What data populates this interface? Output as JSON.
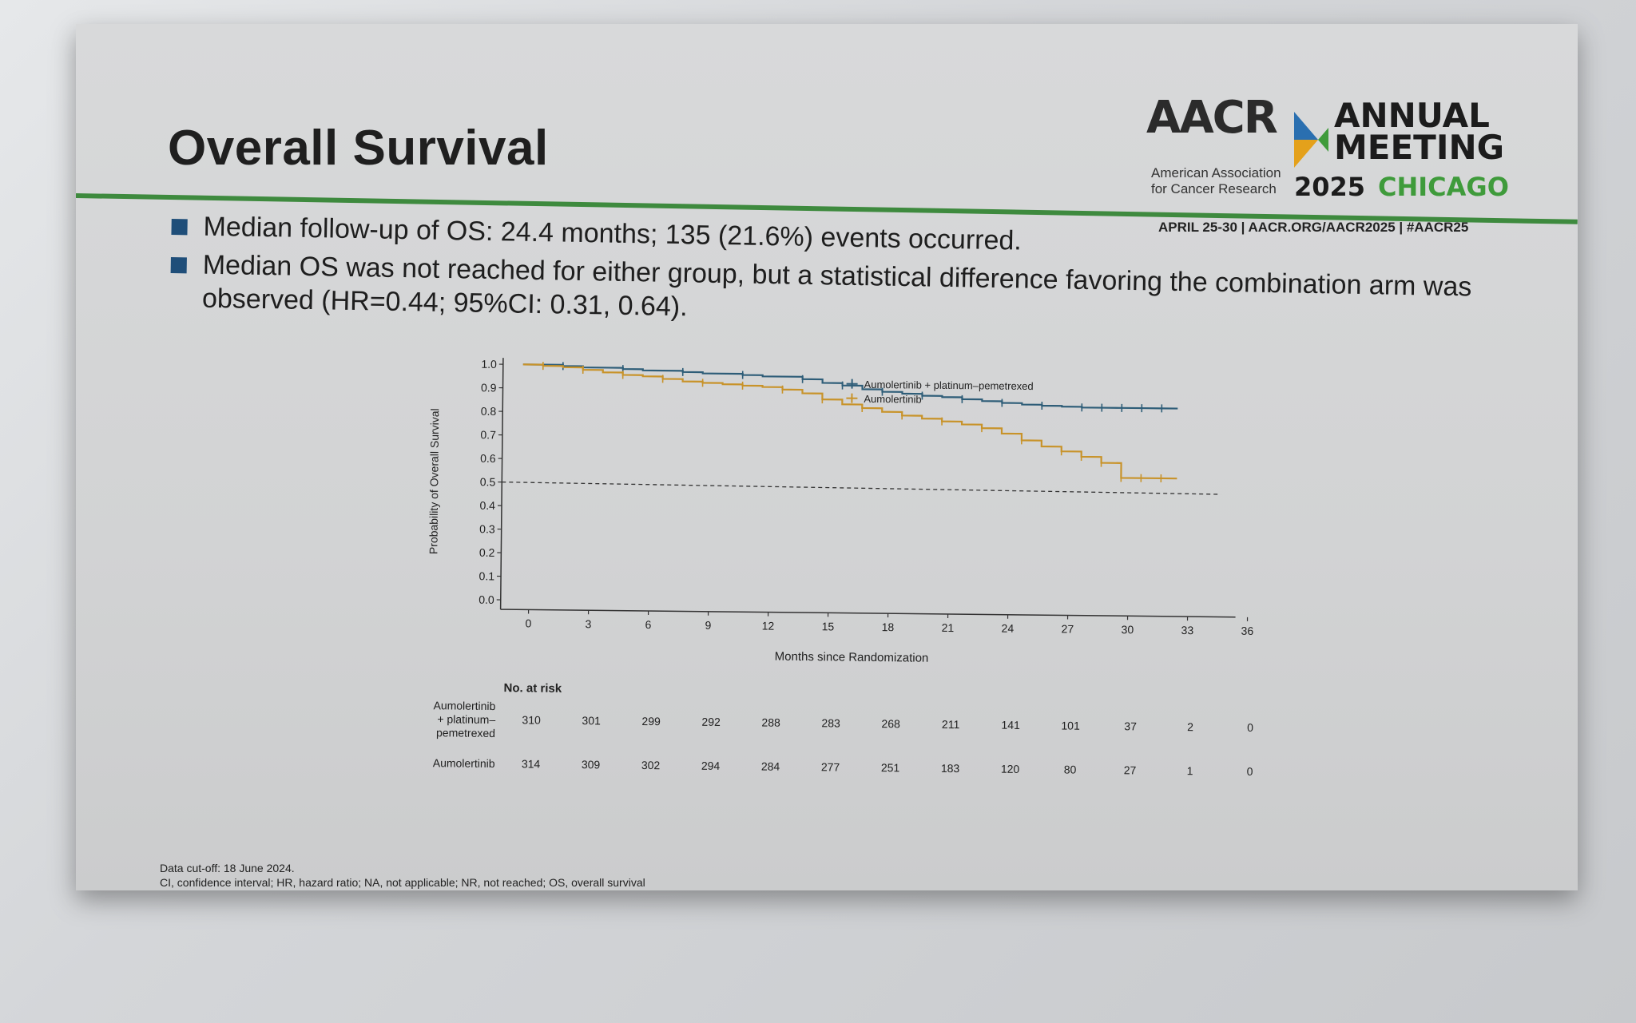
{
  "slide": {
    "title": "Overall Survival",
    "bullets": [
      "Median follow-up of OS: 24.4 months; 135 (21.6%) events occurred.",
      "Median OS was not reached for either group, but a statistical difference favoring the combination arm was observed (HR=0.44; 95%CI: 0.31, 0.64)."
    ],
    "logo": {
      "aacr": "AACR",
      "org_line1": "American Association",
      "org_line2": "for Cancer Research",
      "annual": "ANNUAL",
      "meeting": "MEETING",
      "year": "2025",
      "city": "CHICAGO",
      "dates_line": "APRIL 25-30 | AACR.ORG/AACR2025 | #AACR25"
    },
    "footnote_line1": "Data cut-off: 18 June 2024.",
    "footnote_line2": "CI, confidence interval; HR, hazard ratio; NA, not applicable; NR, not reached; OS, overall survival",
    "colors": {
      "combo": "#2e5d78",
      "mono": "#c8932a",
      "green": "#3e8a3e",
      "bullet": "#1f4e79"
    }
  },
  "chart_data": {
    "type": "line",
    "title": "",
    "xlabel": "Months since Randomization",
    "ylabel": "Probability of Overall Survival",
    "xlim": [
      0,
      36
    ],
    "ylim": [
      0,
      1.0
    ],
    "x_ticks": [
      "0",
      "3",
      "6",
      "9",
      "12",
      "15",
      "18",
      "21",
      "24",
      "27",
      "30",
      "33",
      "36"
    ],
    "y_ticks": [
      "0.0",
      "0.1",
      "0.2",
      "0.3",
      "0.4",
      "0.5",
      "0.6",
      "0.7",
      "0.8",
      "0.9",
      "1.0"
    ],
    "reference_line": 0.5,
    "legend_position": "top-right",
    "series": [
      {
        "name": "Aumolertinib + platinum–pemetrexed",
        "x": [
          0,
          2,
          3,
          5,
          6,
          8,
          9,
          11,
          12,
          14,
          15,
          16,
          17,
          18,
          19,
          20,
          21,
          22,
          23,
          24,
          25,
          26,
          27,
          28,
          29,
          30,
          31,
          32
        ],
        "y": [
          1.0,
          0.995,
          0.99,
          0.985,
          0.98,
          0.975,
          0.97,
          0.965,
          0.96,
          0.95,
          0.935,
          0.925,
          0.91,
          0.9,
          0.893,
          0.885,
          0.88,
          0.872,
          0.865,
          0.858,
          0.852,
          0.848,
          0.845,
          0.842,
          0.842,
          0.842,
          0.842,
          0.842
        ]
      },
      {
        "name": "Aumolertinib",
        "x": [
          0,
          1,
          2,
          3,
          4,
          5,
          6,
          7,
          8,
          9,
          10,
          11,
          12,
          13,
          14,
          15,
          16,
          17,
          18,
          19,
          20,
          21,
          22,
          23,
          24,
          25,
          26,
          27,
          28,
          29,
          30,
          31,
          32
        ],
        "y": [
          1.0,
          0.995,
          0.99,
          0.98,
          0.97,
          0.96,
          0.955,
          0.945,
          0.935,
          0.93,
          0.925,
          0.92,
          0.915,
          0.905,
          0.89,
          0.865,
          0.845,
          0.83,
          0.815,
          0.8,
          0.788,
          0.777,
          0.765,
          0.75,
          0.728,
          0.7,
          0.675,
          0.655,
          0.633,
          0.608,
          0.545,
          0.545,
          0.545
        ]
      }
    ],
    "risk_table": {
      "heading": "No. at risk",
      "rows": [
        {
          "label_lines": [
            "Aumolertinib",
            "+ platinum–",
            "pemetrexed"
          ],
          "values": [
            "310",
            "301",
            "299",
            "292",
            "288",
            "283",
            "268",
            "211",
            "141",
            "101",
            "37",
            "2",
            "0"
          ]
        },
        {
          "label_lines": [
            "Aumolertinib"
          ],
          "values": [
            "314",
            "309",
            "302",
            "294",
            "284",
            "277",
            "251",
            "183",
            "120",
            "80",
            "27",
            "1",
            "0"
          ]
        }
      ]
    }
  }
}
